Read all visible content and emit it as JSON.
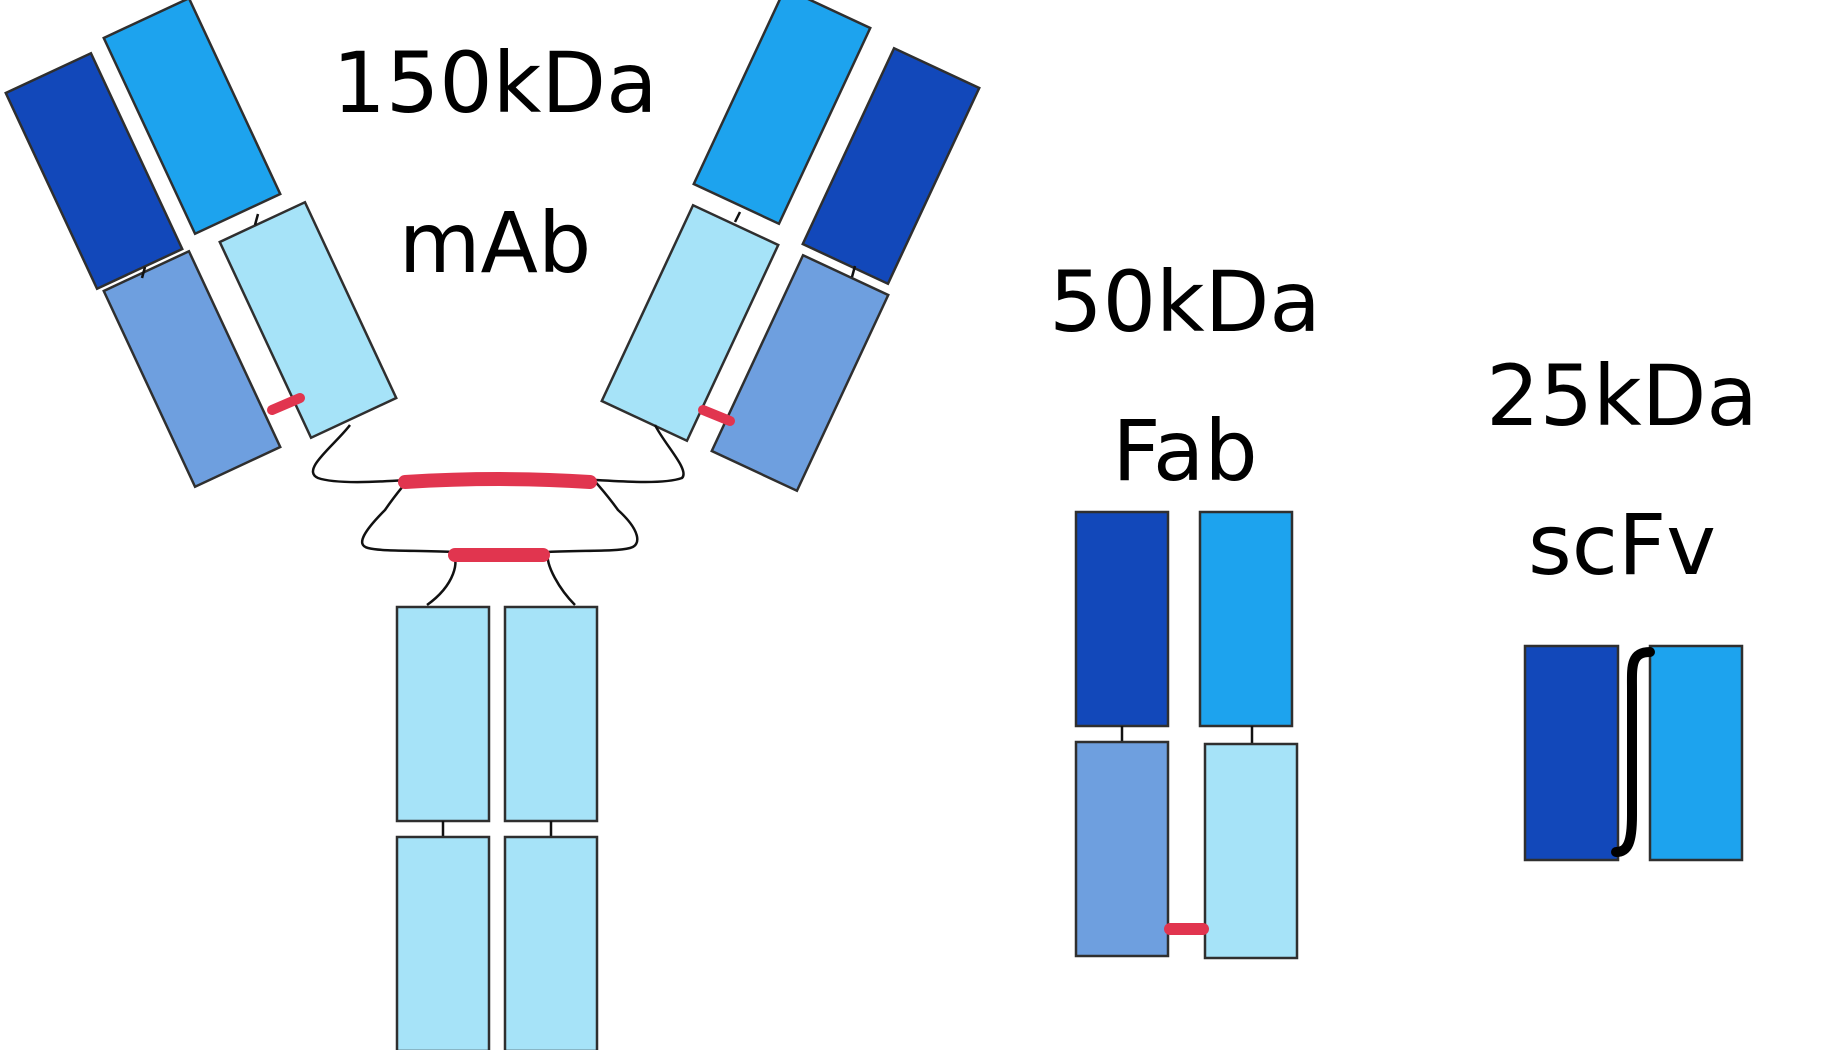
{
  "mab": {
    "mass": "150kDa",
    "name": "mAb"
  },
  "fab": {
    "mass": "50kDa",
    "name": "Fab"
  },
  "scfv": {
    "mass": "25kDa",
    "name": "scFv"
  },
  "colors": {
    "dark_blue": "#1248ba",
    "bright_blue": "#1da3ee",
    "medium_blue": "#6e9fdf",
    "light_blue": "#a6e3f8",
    "disulfide_red": "#e1354f",
    "outline": "#2f2f2f",
    "linker": "#000000"
  }
}
